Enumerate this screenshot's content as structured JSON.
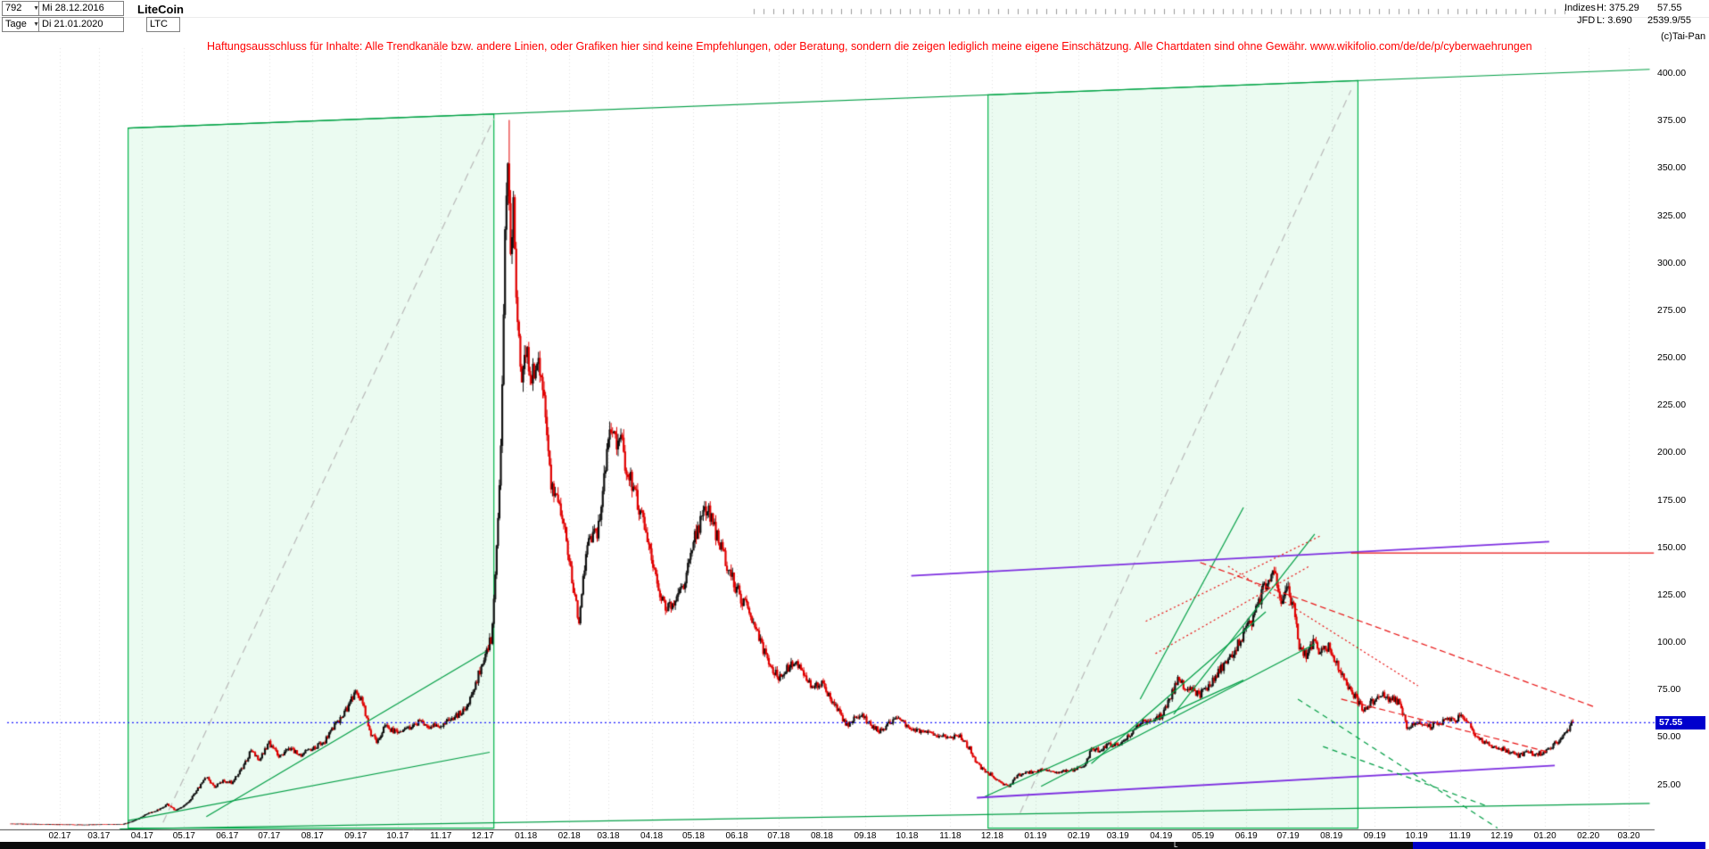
{
  "header": {
    "bars_count": "792",
    "start_date": "Mi 28.12.2016",
    "title": "LiteCoin",
    "timeframe": "Tage",
    "end_date": "Di 21.01.2020",
    "symbol": "LTC",
    "category": "Indizes",
    "provider": "JFD",
    "high_label": "H: 375.29",
    "low_label": "L: 3.690",
    "last_price": "57.55",
    "volume": "2539.9/55",
    "copyright": "(c)Tai-Pan"
  },
  "disclaimer": "Haftungsausschluss für Inhalte: Alle Trendkanäle bzw. andere Linien, oder Grafiken hier sind keine Empfehlungen, oder Beratung, sondern die zeigen lediglich meine eigene Einschätzung. Alle Chartdaten sind ohne Gewähr.  www.wikifolio.com/de/de/p/cyberwaehrungen",
  "price_axis": {
    "labels": [
      "400.00",
      "375.00",
      "350.00",
      "325.00",
      "300.00",
      "275.00",
      "250.00",
      "225.00",
      "200.00",
      "175.00",
      "150.00",
      "125.00",
      "100.00",
      "75.00",
      "50.00",
      "25.00"
    ],
    "marker": {
      "label": "57.55",
      "value": 57.55
    }
  },
  "time_axis": {
    "labels": [
      "02.17",
      "03.17",
      "04.17",
      "05.17",
      "06.17",
      "07.17",
      "08.17",
      "09.17",
      "10.17",
      "11.17",
      "12.17",
      "01.18",
      "02.18",
      "03.18",
      "04.18",
      "05.18",
      "06.18",
      "07.18",
      "08.18",
      "09.18",
      "10.18",
      "11.18",
      "12.18",
      "01.19",
      "02.19",
      "03.19",
      "04.19",
      "05.19",
      "06.19",
      "07.19",
      "08.19",
      "09.19",
      "10.19",
      "11.19",
      "12.19",
      "01.20",
      "02.20",
      "03.20"
    ]
  },
  "scrollbar": {
    "marker": "L"
  },
  "chart_data": {
    "type": "candlestick",
    "instrument": "LiteCoin",
    "symbol": "LTC",
    "timeframe": "daily (Tage)",
    "visible_range": {
      "from": "2016-12-28",
      "to": "2020-01-21",
      "bars": 792
    },
    "x_unit": "days since 2016-12-28",
    "high": 375.29,
    "low": 3.69,
    "last": 57.55,
    "ylim": [
      0,
      400
    ],
    "close_path_anchors": [
      [
        0,
        4.3
      ],
      [
        20,
        4.1
      ],
      [
        35,
        3.9
      ],
      [
        55,
        3.8
      ],
      [
        63,
        3.9
      ],
      [
        80,
        4.1
      ],
      [
        90,
        6.5
      ],
      [
        97,
        9.5
      ],
      [
        105,
        11.5
      ],
      [
        112,
        14.5
      ],
      [
        118,
        11.5
      ],
      [
        126,
        15
      ],
      [
        133,
        22
      ],
      [
        140,
        29
      ],
      [
        146,
        24
      ],
      [
        152,
        27
      ],
      [
        158,
        26
      ],
      [
        165,
        33
      ],
      [
        172,
        43
      ],
      [
        178,
        38
      ],
      [
        185,
        47
      ],
      [
        192,
        40
      ],
      [
        200,
        44
      ],
      [
        208,
        41
      ],
      [
        216,
        44
      ],
      [
        224,
        47
      ],
      [
        232,
        56
      ],
      [
        240,
        64
      ],
      [
        247,
        75
      ],
      [
        252,
        68
      ],
      [
        258,
        52
      ],
      [
        262,
        48
      ],
      [
        268,
        56
      ],
      [
        277,
        52
      ],
      [
        285,
        55
      ],
      [
        292,
        58
      ],
      [
        300,
        56
      ],
      [
        308,
        55
      ],
      [
        316,
        60
      ],
      [
        324,
        64
      ],
      [
        330,
        72
      ],
      [
        338,
        90
      ],
      [
        344,
        102
      ],
      [
        348,
        148
      ],
      [
        351,
        200
      ],
      [
        354,
        320
      ],
      [
        356,
        362
      ],
      [
        358,
        300
      ],
      [
        360,
        330
      ],
      [
        363,
        270
      ],
      [
        366,
        232
      ],
      [
        369,
        252
      ],
      [
        373,
        240
      ],
      [
        377,
        250
      ],
      [
        382,
        225
      ],
      [
        387,
        185
      ],
      [
        392,
        175
      ],
      [
        397,
        160
      ],
      [
        400,
        145
      ],
      [
        404,
        125
      ],
      [
        407,
        110
      ],
      [
        412,
        150
      ],
      [
        417,
        155
      ],
      [
        422,
        162
      ],
      [
        427,
        205
      ],
      [
        430,
        215
      ],
      [
        433,
        205
      ],
      [
        436,
        210
      ],
      [
        440,
        195
      ],
      [
        445,
        185
      ],
      [
        450,
        170
      ],
      [
        455,
        160
      ],
      [
        460,
        142
      ],
      [
        465,
        125
      ],
      [
        470,
        118
      ],
      [
        476,
        122
      ],
      [
        482,
        130
      ],
      [
        487,
        148
      ],
      [
        489,
        152
      ],
      [
        494,
        165
      ],
      [
        499,
        172
      ],
      [
        504,
        160
      ],
      [
        510,
        148
      ],
      [
        516,
        135
      ],
      [
        520,
        128
      ],
      [
        526,
        120
      ],
      [
        532,
        112
      ],
      [
        538,
        98
      ],
      [
        544,
        88
      ],
      [
        550,
        82
      ],
      [
        556,
        86
      ],
      [
        562,
        90
      ],
      [
        568,
        84
      ],
      [
        574,
        76
      ],
      [
        581,
        78
      ],
      [
        588,
        70
      ],
      [
        594,
        62
      ],
      [
        600,
        56
      ],
      [
        606,
        62
      ],
      [
        612,
        60
      ],
      [
        618,
        55
      ],
      [
        624,
        53
      ],
      [
        630,
        58
      ],
      [
        636,
        60
      ],
      [
        642,
        56
      ],
      [
        650,
        53
      ],
      [
        658,
        52
      ],
      [
        666,
        51
      ],
      [
        673,
        50
      ],
      [
        680,
        50
      ],
      [
        687,
        44
      ],
      [
        692,
        36
      ],
      [
        698,
        32
      ],
      [
        703,
        30
      ],
      [
        709,
        26
      ],
      [
        715,
        24
      ],
      [
        721,
        30
      ],
      [
        727,
        31
      ],
      [
        734,
        32
      ],
      [
        741,
        33
      ],
      [
        748,
        31
      ],
      [
        755,
        32
      ],
      [
        762,
        33
      ],
      [
        765,
        34
      ],
      [
        770,
        36
      ],
      [
        774,
        44
      ],
      [
        780,
        43
      ],
      [
        786,
        46
      ],
      [
        793,
        46
      ],
      [
        800,
        50
      ],
      [
        807,
        56
      ],
      [
        814,
        59
      ],
      [
        821,
        60
      ],
      [
        824,
        61
      ],
      [
        830,
        70
      ],
      [
        836,
        80
      ],
      [
        842,
        76
      ],
      [
        848,
        74
      ],
      [
        851,
        72
      ],
      [
        854,
        74
      ],
      [
        860,
        78
      ],
      [
        866,
        86
      ],
      [
        872,
        90
      ],
      [
        878,
        98
      ],
      [
        884,
        106
      ],
      [
        890,
        112
      ],
      [
        896,
        126
      ],
      [
        901,
        134
      ],
      [
        906,
        138
      ],
      [
        910,
        122
      ],
      [
        915,
        128
      ],
      [
        919,
        118
      ],
      [
        923,
        99
      ],
      [
        928,
        92
      ],
      [
        933,
        100
      ],
      [
        938,
        95
      ],
      [
        944,
        97
      ],
      [
        946,
        92
      ],
      [
        952,
        86
      ],
      [
        958,
        76
      ],
      [
        964,
        70
      ],
      [
        970,
        64
      ],
      [
        977,
        70
      ],
      [
        983,
        72
      ],
      [
        989,
        70
      ],
      [
        995,
        68
      ],
      [
        1000,
        56
      ],
      [
        1007,
        57
      ],
      [
        1014,
        55
      ],
      [
        1021,
        57
      ],
      [
        1028,
        59
      ],
      [
        1035,
        58
      ],
      [
        1038,
        62
      ],
      [
        1044,
        58
      ],
      [
        1050,
        50
      ],
      [
        1056,
        47
      ],
      [
        1062,
        45
      ],
      [
        1068,
        44
      ],
      [
        1074,
        42
      ],
      [
        1080,
        40
      ],
      [
        1086,
        42
      ],
      [
        1092,
        41
      ],
      [
        1099,
        42
      ],
      [
        1105,
        46
      ],
      [
        1111,
        50
      ],
      [
        1115,
        54
      ],
      [
        1119,
        57.55
      ]
    ],
    "annotations": {
      "hline": {
        "value": 57.55,
        "style": "blue-dotted"
      },
      "boxes": [
        {
          "d1": 84,
          "d2": 346,
          "bottom": 2
        },
        {
          "d1": 700,
          "d2": 965,
          "bottom": 2
        }
      ],
      "lines": [
        {
          "id": "major-uptrend",
          "style": "green",
          "pts": [
            84,
            371,
            1174,
            402
          ]
        },
        {
          "id": "longterm-support",
          "style": "green",
          "pts": [
            78,
            1.5,
            1174,
            15
          ]
        },
        {
          "id": "phase1-diagonal",
          "style": "gray-dash",
          "pts": [
            109,
            5,
            346,
            376
          ]
        },
        {
          "id": "phase2-diagonal",
          "style": "gray-dash",
          "pts": [
            723,
            10,
            960,
            391
          ]
        },
        {
          "id": "channel2017-lower",
          "style": "green",
          "pts": [
            84,
            6,
            343,
            42
          ]
        },
        {
          "id": "channel2017-upper",
          "style": "green",
          "pts": [
            140,
            8,
            340,
            95
          ]
        },
        {
          "id": "support2019-a",
          "style": "green",
          "pts": [
            696,
            18,
            883,
            80
          ]
        },
        {
          "id": "support2019-b",
          "style": "green",
          "pts": [
            738,
            24,
            934,
            99
          ]
        },
        {
          "id": "support2019-mid",
          "style": "green",
          "pts": [
            774,
            36,
            899,
            116
          ]
        },
        {
          "id": "steep2019-a",
          "style": "green",
          "pts": [
            809,
            70,
            883,
            171
          ]
        },
        {
          "id": "steep2019-b",
          "style": "green",
          "pts": [
            833,
            62,
            934,
            157
          ]
        },
        {
          "id": "purple-resistance",
          "style": "purple",
          "pts": [
            645,
            135,
            1102,
            153
          ]
        },
        {
          "id": "purple-support",
          "style": "purple",
          "pts": [
            692,
            18,
            1106,
            35
          ]
        },
        {
          "id": "red-resistance",
          "style": "red",
          "pts": [
            960,
            147,
            1177,
            147
          ]
        },
        {
          "id": "red-decline-a",
          "style": "red-dash",
          "pts": [
            852,
            142,
            1134,
            66
          ]
        },
        {
          "id": "red-decline-b",
          "style": "red-dot",
          "pts": [
            872,
            140,
            1008,
            77
          ]
        },
        {
          "id": "red-decline-c",
          "style": "red-dash",
          "pts": [
            953,
            70,
            1102,
            42
          ]
        },
        {
          "id": "red-rising-a",
          "style": "red-dot",
          "pts": [
            813,
            111,
            938,
            156
          ]
        },
        {
          "id": "red-rising-b",
          "style": "red-dot",
          "pts": [
            820,
            94,
            930,
            140
          ]
        },
        {
          "id": "green-exit-a",
          "style": "green-dash",
          "pts": [
            922,
            70,
            1065,
            2
          ]
        },
        {
          "id": "green-exit-b",
          "style": "green-dash",
          "pts": [
            940,
            45,
            1056,
            14
          ]
        }
      ]
    },
    "colors": {
      "up": "#111111",
      "down": "#e00000",
      "box_border": "#00b44b",
      "box_fill": "rgba(0,200,80,0.08)",
      "trend_green": "#009e45",
      "gray_dash": "#b8b8b8",
      "purple": "#7d2fe0",
      "red": "#e81515",
      "blue_dotted": "#2020ff"
    }
  }
}
